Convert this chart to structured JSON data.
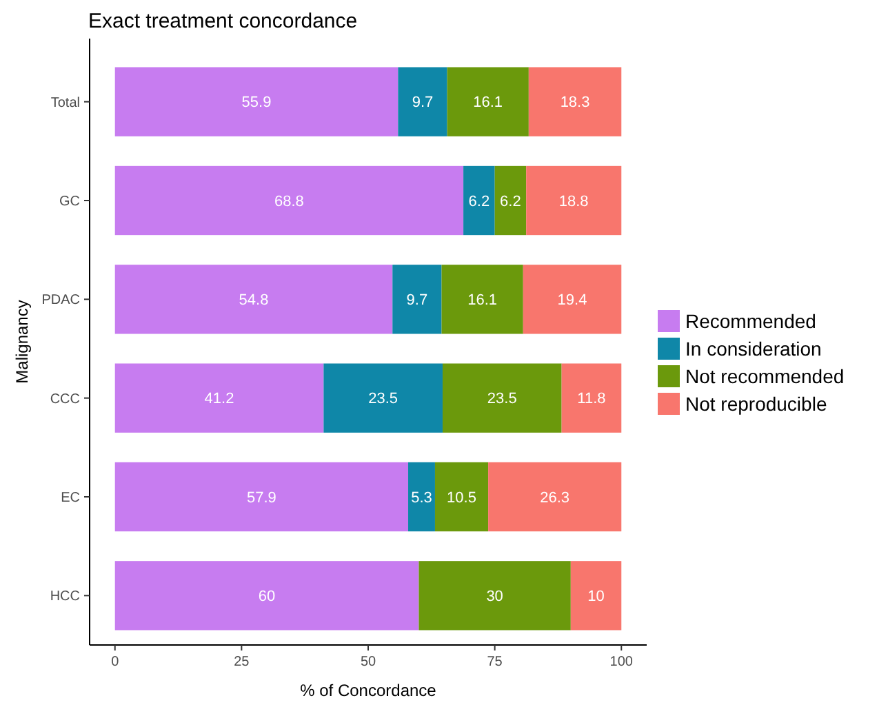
{
  "chart_data": {
    "type": "bar",
    "orientation": "horizontal",
    "stacked": true,
    "title": "Exact treatment concordance",
    "xlabel": "% of Concordance",
    "ylabel": "Malignancy",
    "categories": [
      "Total",
      "GC",
      "PDAC",
      "CCC",
      "EC",
      "HCC"
    ],
    "series": [
      {
        "name": "Recommended",
        "color": "#c77cf0",
        "values": [
          55.9,
          68.8,
          54.8,
          41.2,
          57.9,
          60
        ],
        "value_labels": [
          "55.9",
          "68.8",
          "54.8",
          "41.2",
          "57.9",
          "60"
        ]
      },
      {
        "name": "In consideration",
        "color": "#0f87a8",
        "values": [
          9.7,
          6.2,
          9.7,
          23.5,
          5.3,
          0
        ],
        "value_labels": [
          "9.7",
          "6.2",
          "9.7",
          "23.5",
          "5.3",
          null
        ]
      },
      {
        "name": "Not recommended",
        "color": "#6b990c",
        "values": [
          16.1,
          6.2,
          16.1,
          23.5,
          10.5,
          30
        ],
        "value_labels": [
          "16.1",
          "6.2",
          "16.1",
          "23.5",
          "10.5",
          "30"
        ]
      },
      {
        "name": "Not reproducible",
        "color": "#f8766d",
        "values": [
          18.3,
          18.8,
          19.4,
          11.8,
          26.3,
          10
        ],
        "value_labels": [
          "18.3",
          "18.8",
          "19.4",
          "11.8",
          "26.3",
          "10"
        ]
      }
    ],
    "xlim": [
      -5,
      105
    ],
    "xticks": [
      0,
      25,
      50,
      75,
      100
    ],
    "grid": false,
    "legend": "right"
  }
}
